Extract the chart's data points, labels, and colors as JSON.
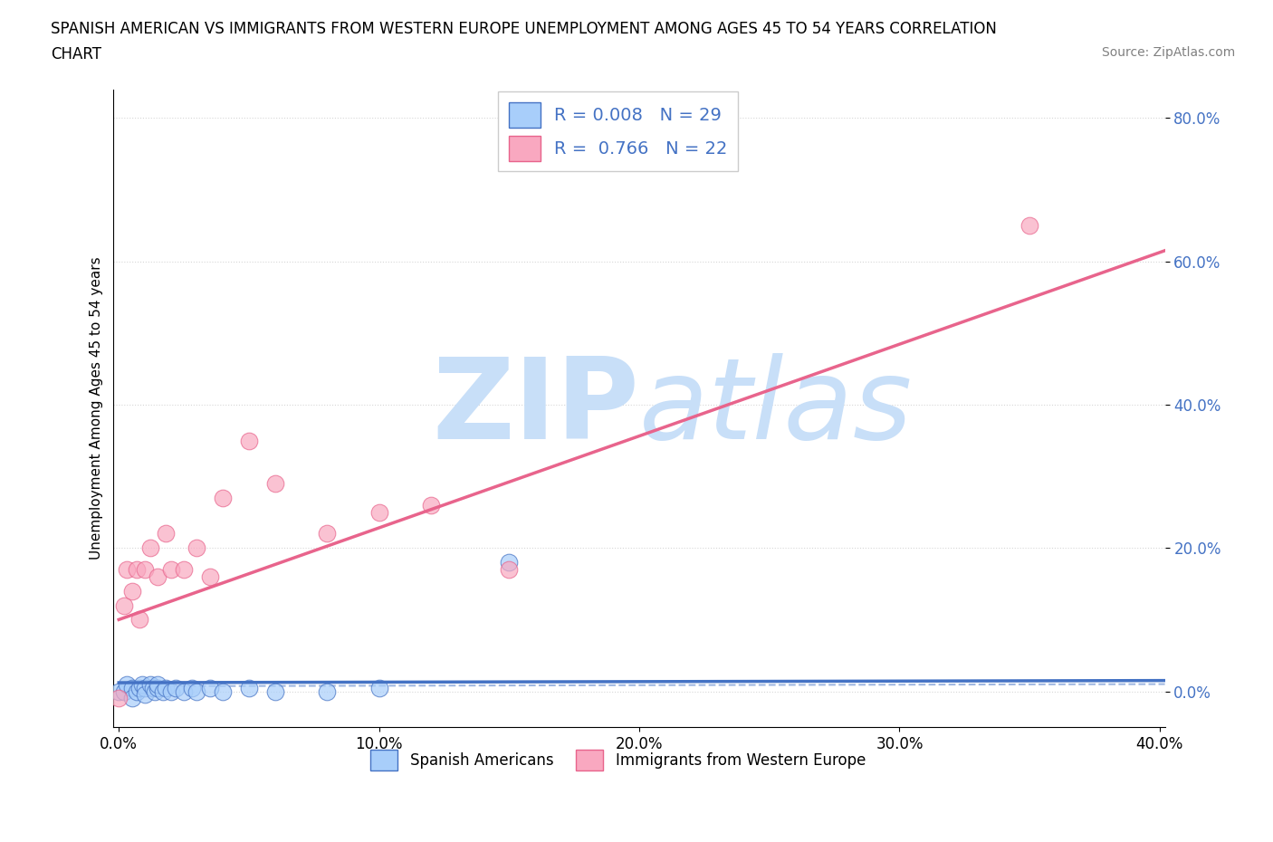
{
  "title_line1": "SPANISH AMERICAN VS IMMIGRANTS FROM WESTERN EUROPE UNEMPLOYMENT AMONG AGES 45 TO 54 YEARS CORRELATION",
  "title_line2": "CHART",
  "source_text": "Source: ZipAtlas.com",
  "ylabel": "Unemployment Among Ages 45 to 54 years",
  "xlim": [
    -0.002,
    0.402
  ],
  "ylim": [
    -0.05,
    0.84
  ],
  "yticks": [
    0.0,
    0.2,
    0.4,
    0.6,
    0.8
  ],
  "xticks": [
    0.0,
    0.1,
    0.2,
    0.3,
    0.4
  ],
  "legend_r1": "R = 0.008",
  "legend_n1": "N = 29",
  "legend_r2": "R = 0.766",
  "legend_n2": "N = 22",
  "color_blue": "#A8CEFA",
  "color_pink": "#F9A8C0",
  "color_line_blue": "#4472C4",
  "color_line_pink": "#E8648C",
  "watermark_color": "#C8DFF8",
  "blue_scatter_x": [
    0.0,
    0.002,
    0.003,
    0.005,
    0.005,
    0.007,
    0.008,
    0.009,
    0.01,
    0.01,
    0.012,
    0.013,
    0.014,
    0.015,
    0.015,
    0.017,
    0.018,
    0.02,
    0.022,
    0.025,
    0.028,
    0.03,
    0.035,
    0.04,
    0.05,
    0.06,
    0.08,
    0.1,
    0.15
  ],
  "blue_scatter_y": [
    0.0,
    0.0,
    0.01,
    0.005,
    -0.01,
    0.0,
    0.005,
    0.01,
    0.005,
    -0.005,
    0.01,
    0.005,
    0.0,
    0.005,
    0.01,
    0.0,
    0.005,
    0.0,
    0.005,
    0.0,
    0.005,
    0.0,
    0.005,
    0.0,
    0.005,
    0.0,
    0.0,
    0.005,
    0.18
  ],
  "pink_scatter_x": [
    0.0,
    0.002,
    0.003,
    0.005,
    0.007,
    0.008,
    0.01,
    0.012,
    0.015,
    0.018,
    0.02,
    0.025,
    0.03,
    0.035,
    0.04,
    0.05,
    0.06,
    0.08,
    0.1,
    0.12,
    0.15,
    0.35
  ],
  "pink_scatter_y": [
    -0.01,
    0.12,
    0.17,
    0.14,
    0.17,
    0.1,
    0.17,
    0.2,
    0.16,
    0.22,
    0.17,
    0.17,
    0.2,
    0.16,
    0.27,
    0.35,
    0.29,
    0.22,
    0.25,
    0.26,
    0.17,
    0.65
  ],
  "pink_line_x0": 0.0,
  "pink_line_y0": 0.1,
  "pink_line_x1": 0.402,
  "pink_line_y1": 0.615,
  "blue_line_x0": 0.0,
  "blue_line_y0": 0.012,
  "blue_line_x1": 0.402,
  "blue_line_y1": 0.015
}
